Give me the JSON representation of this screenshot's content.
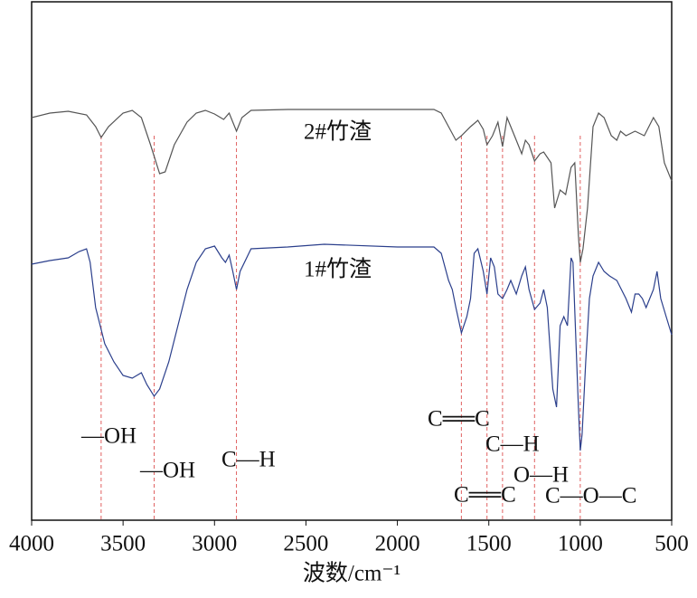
{
  "chart_data": {
    "type": "line",
    "x_label": "波数/cm⁻¹",
    "xlim": [
      4000,
      500
    ],
    "xticks": [
      4000,
      3500,
      3000,
      2500,
      2000,
      1500,
      1000,
      500
    ],
    "ylim": [
      0,
      573
    ],
    "series": [
      {
        "name": "2#竹渣",
        "color": "#555555",
        "x": [
          4000,
          3900,
          3800,
          3700,
          3650,
          3620,
          3580,
          3500,
          3450,
          3400,
          3350,
          3300,
          3270,
          3220,
          3150,
          3100,
          3050,
          3000,
          2950,
          2920,
          2880,
          2850,
          2800,
          2600,
          2400,
          2000,
          1800,
          1760,
          1720,
          1680,
          1650,
          1600,
          1560,
          1530,
          1510,
          1480,
          1450,
          1425,
          1400,
          1380,
          1350,
          1320,
          1300,
          1280,
          1250,
          1220,
          1200,
          1160,
          1140,
          1110,
          1080,
          1050,
          1030,
          1010,
          1000,
          985,
          960,
          930,
          900,
          870,
          830,
          800,
          780,
          750,
          700,
          650,
          600,
          570,
          540,
          500
        ],
        "values": [
          445,
          450,
          452,
          448,
          435,
          423,
          435,
          450,
          453,
          445,
          415,
          383,
          385,
          415,
          440,
          450,
          453,
          449,
          443,
          450,
          430,
          445,
          453,
          454,
          454,
          454,
          454,
          450,
          435,
          420,
          425,
          435,
          442,
          432,
          415,
          425,
          440,
          413,
          445,
          435,
          420,
          405,
          420,
          415,
          397,
          405,
          407,
          395,
          345,
          365,
          360,
          390,
          395,
          315,
          285,
          300,
          345,
          435,
          450,
          445,
          425,
          420,
          430,
          425,
          430,
          425,
          445,
          435,
          395,
          375
        ]
      },
      {
        "name": "1#竹渣",
        "color": "#2b3f8c",
        "x": [
          4000,
          3900,
          3800,
          3740,
          3700,
          3680,
          3650,
          3600,
          3550,
          3500,
          3450,
          3400,
          3370,
          3330,
          3300,
          3250,
          3200,
          3150,
          3100,
          3050,
          3000,
          2960,
          2940,
          2920,
          2900,
          2880,
          2860,
          2800,
          2600,
          2400,
          2000,
          1800,
          1760,
          1720,
          1700,
          1680,
          1650,
          1620,
          1600,
          1580,
          1560,
          1530,
          1510,
          1490,
          1470,
          1450,
          1425,
          1400,
          1380,
          1350,
          1320,
          1300,
          1280,
          1250,
          1220,
          1200,
          1180,
          1150,
          1130,
          1110,
          1090,
          1070,
          1050,
          1040,
          1010,
          1000,
          990,
          970,
          950,
          930,
          900,
          870,
          840,
          800,
          750,
          720,
          700,
          680,
          660,
          640,
          600,
          580,
          560,
          530,
          500
        ],
        "values": [
          283,
          287,
          290,
          297,
          300,
          285,
          235,
          195,
          175,
          160,
          157,
          163,
          150,
          137,
          145,
          175,
          215,
          255,
          285,
          300,
          303,
          290,
          285,
          293,
          275,
          255,
          275,
          300,
          302,
          305,
          302,
          302,
          295,
          265,
          255,
          235,
          207,
          225,
          245,
          295,
          300,
          275,
          250,
          290,
          280,
          250,
          245,
          255,
          265,
          250,
          270,
          280,
          255,
          233,
          240,
          255,
          235,
          145,
          125,
          215,
          225,
          215,
          290,
          285,
          125,
          77,
          95,
          175,
          245,
          270,
          285,
          275,
          270,
          265,
          245,
          230,
          250,
          250,
          245,
          235,
          255,
          275,
          245,
          225,
          205
        ]
      }
    ],
    "reference_lines": [
      3620,
      3330,
      2880,
      1650,
      1510,
      1425,
      1250,
      1000
    ],
    "annotations": [
      "—OH",
      "—OH",
      "C—H",
      "C══C",
      "C—H",
      "O—H",
      "C══C",
      "C—O—C"
    ]
  }
}
